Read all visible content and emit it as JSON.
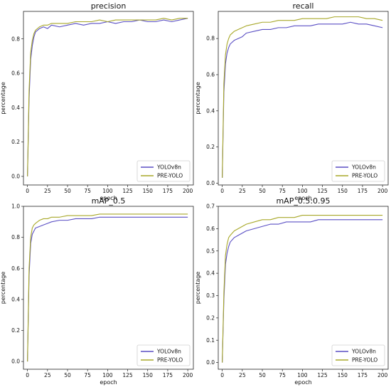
{
  "colors": {
    "yolov8n": "#5a4fc4",
    "pre_yolo": "#a8a82a"
  },
  "chart_data": [
    {
      "type": "line",
      "title": "precision",
      "xlabel": "epoch",
      "ylabel": "percentage",
      "xlim": [
        -5,
        207
      ],
      "ylim": [
        -0.05,
        0.96
      ],
      "xticks": [
        0,
        25,
        50,
        75,
        100,
        125,
        150,
        175,
        200
      ],
      "yticks": [
        0.0,
        0.2,
        0.4,
        0.6,
        0.8
      ],
      "yticks_text": [
        "0.0",
        "0.2",
        "0.4",
        "0.6",
        "0.8"
      ],
      "legend_position": "bottom-right",
      "x": [
        0,
        2,
        4,
        6,
        8,
        10,
        15,
        20,
        25,
        30,
        40,
        50,
        60,
        70,
        80,
        90,
        100,
        110,
        120,
        130,
        140,
        150,
        160,
        170,
        180,
        190,
        200
      ],
      "series": [
        {
          "name": "YOLOv8n",
          "color_key": "yolov8n",
          "values": [
            0.0,
            0.45,
            0.68,
            0.76,
            0.81,
            0.84,
            0.86,
            0.87,
            0.86,
            0.88,
            0.87,
            0.88,
            0.89,
            0.88,
            0.89,
            0.89,
            0.9,
            0.89,
            0.9,
            0.9,
            0.91,
            0.9,
            0.9,
            0.91,
            0.9,
            0.91,
            0.92
          ]
        },
        {
          "name": "PRE-YOLO",
          "color_key": "pre_yolo",
          "values": [
            0.0,
            0.5,
            0.72,
            0.79,
            0.83,
            0.85,
            0.87,
            0.88,
            0.88,
            0.89,
            0.89,
            0.89,
            0.9,
            0.9,
            0.9,
            0.91,
            0.9,
            0.91,
            0.91,
            0.91,
            0.91,
            0.91,
            0.91,
            0.92,
            0.91,
            0.92,
            0.92
          ]
        }
      ]
    },
    {
      "type": "line",
      "title": "recall",
      "xlabel": "epoch",
      "ylabel": "percentage",
      "xlim": [
        -5,
        207
      ],
      "ylim": [
        -0.01,
        0.95
      ],
      "xticks": [
        0,
        25,
        50,
        75,
        100,
        125,
        150,
        175,
        200
      ],
      "yticks": [
        0.0,
        0.2,
        0.4,
        0.6,
        0.8
      ],
      "yticks_text": [
        "0.0",
        "0.2",
        "0.4",
        "0.6",
        "0.8"
      ],
      "legend_position": "bottom-right",
      "x": [
        0,
        2,
        4,
        6,
        8,
        10,
        15,
        20,
        25,
        30,
        40,
        50,
        60,
        70,
        80,
        90,
        100,
        110,
        120,
        130,
        140,
        150,
        160,
        170,
        180,
        190,
        200
      ],
      "series": [
        {
          "name": "YOLOv8n",
          "color_key": "yolov8n",
          "values": [
            0.03,
            0.5,
            0.66,
            0.72,
            0.75,
            0.77,
            0.79,
            0.8,
            0.81,
            0.83,
            0.84,
            0.85,
            0.85,
            0.86,
            0.86,
            0.87,
            0.87,
            0.87,
            0.88,
            0.88,
            0.88,
            0.88,
            0.89,
            0.88,
            0.88,
            0.87,
            0.86
          ]
        },
        {
          "name": "PRE-YOLO",
          "color_key": "pre_yolo",
          "values": [
            0.03,
            0.55,
            0.71,
            0.77,
            0.8,
            0.82,
            0.84,
            0.85,
            0.86,
            0.87,
            0.88,
            0.89,
            0.89,
            0.9,
            0.9,
            0.9,
            0.91,
            0.91,
            0.91,
            0.91,
            0.92,
            0.92,
            0.92,
            0.92,
            0.91,
            0.91,
            0.9
          ]
        }
      ]
    },
    {
      "type": "line",
      "title": "mAP_0.5",
      "xlabel": "epoch",
      "ylabel": "percentage",
      "xlim": [
        -5,
        207
      ],
      "ylim": [
        -0.05,
        1.0
      ],
      "xticks": [
        0,
        25,
        50,
        75,
        100,
        125,
        150,
        175,
        200
      ],
      "yticks": [
        0.0,
        0.2,
        0.4,
        0.6,
        0.8,
        1.0
      ],
      "yticks_text": [
        "0.0",
        "0.2",
        "0.4",
        "0.6",
        "0.8",
        "1.0"
      ],
      "legend_position": "bottom-right",
      "x": [
        0,
        2,
        4,
        6,
        8,
        10,
        15,
        20,
        25,
        30,
        40,
        50,
        60,
        70,
        80,
        90,
        100,
        110,
        120,
        130,
        140,
        150,
        160,
        170,
        180,
        190,
        200
      ],
      "series": [
        {
          "name": "YOLOv8n",
          "color_key": "yolov8n",
          "values": [
            0.0,
            0.55,
            0.76,
            0.82,
            0.84,
            0.86,
            0.87,
            0.88,
            0.89,
            0.9,
            0.91,
            0.91,
            0.92,
            0.92,
            0.92,
            0.93,
            0.93,
            0.93,
            0.93,
            0.93,
            0.93,
            0.93,
            0.93,
            0.93,
            0.93,
            0.93,
            0.93
          ]
        },
        {
          "name": "PRE-YOLO",
          "color_key": "pre_yolo",
          "values": [
            0.0,
            0.6,
            0.8,
            0.86,
            0.88,
            0.89,
            0.91,
            0.92,
            0.92,
            0.93,
            0.93,
            0.94,
            0.94,
            0.94,
            0.94,
            0.95,
            0.95,
            0.95,
            0.95,
            0.95,
            0.95,
            0.95,
            0.95,
            0.95,
            0.95,
            0.95,
            0.95
          ]
        }
      ]
    },
    {
      "type": "line",
      "title": "mAP_0.5:0.95",
      "xlabel": "epoch",
      "ylabel": "percentage",
      "xlim": [
        -5,
        207
      ],
      "ylim": [
        -0.03,
        0.7
      ],
      "xticks": [
        0,
        25,
        50,
        75,
        100,
        125,
        150,
        175,
        200
      ],
      "yticks": [
        0.0,
        0.1,
        0.2,
        0.3,
        0.4,
        0.5,
        0.6,
        0.7
      ],
      "yticks_text": [
        "0.0",
        "0.1",
        "0.2",
        "0.3",
        "0.4",
        "0.5",
        "0.6",
        "0.7"
      ],
      "legend_position": "bottom-right",
      "x": [
        0,
        2,
        4,
        6,
        8,
        10,
        15,
        20,
        25,
        30,
        40,
        50,
        60,
        70,
        80,
        90,
        100,
        110,
        120,
        130,
        140,
        150,
        160,
        170,
        180,
        190,
        200
      ],
      "series": [
        {
          "name": "YOLOv8n",
          "color_key": "yolov8n",
          "values": [
            0.0,
            0.28,
            0.44,
            0.49,
            0.52,
            0.54,
            0.56,
            0.57,
            0.58,
            0.59,
            0.6,
            0.61,
            0.62,
            0.62,
            0.63,
            0.63,
            0.63,
            0.63,
            0.64,
            0.64,
            0.64,
            0.64,
            0.64,
            0.64,
            0.64,
            0.64,
            0.64
          ]
        },
        {
          "name": "PRE-YOLO",
          "color_key": "pre_yolo",
          "values": [
            0.0,
            0.31,
            0.48,
            0.53,
            0.56,
            0.57,
            0.59,
            0.6,
            0.61,
            0.62,
            0.63,
            0.64,
            0.64,
            0.65,
            0.65,
            0.65,
            0.66,
            0.66,
            0.66,
            0.66,
            0.66,
            0.66,
            0.66,
            0.66,
            0.66,
            0.66,
            0.66
          ]
        }
      ]
    }
  ]
}
